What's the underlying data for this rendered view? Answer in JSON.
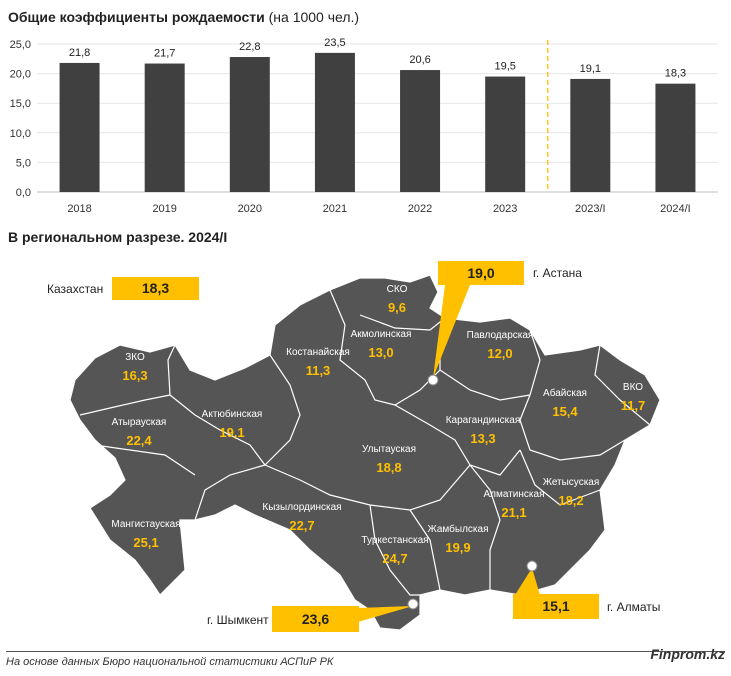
{
  "header": {
    "title_bold": "Общие коэффициенты рождаемости",
    "title_rest": " (на 1000 чел.)"
  },
  "chart_data": {
    "type": "bar",
    "categories": [
      "2018",
      "2019",
      "2020",
      "2021",
      "2022",
      "2023",
      "2023/I",
      "2024/I"
    ],
    "values": [
      21.8,
      21.7,
      22.8,
      23.5,
      20.6,
      19.5,
      19.1,
      18.3
    ],
    "value_labels": [
      "21,8",
      "21,7",
      "22,8",
      "23,5",
      "20,6",
      "19,5",
      "19,1",
      "18,3"
    ],
    "y_ticks": [
      "0,0",
      "5,0",
      "10,0",
      "15,0",
      "20,0",
      "25,0"
    ],
    "ylim": [
      0,
      25
    ],
    "grid": true,
    "separator_after_category": "2023",
    "bar_color": "#404040",
    "separator_color": "#ffc000"
  },
  "map_section": {
    "title": "В региональном разрезе. 2024/I",
    "map_color": "#555555",
    "value_color": "#ffc000",
    "regions": [
      {
        "id": "sko",
        "name": "СКО",
        "value": "9,6"
      },
      {
        "id": "pavlodar",
        "name": "Павлодарская",
        "value": "12,0"
      },
      {
        "id": "kostanay",
        "name": "Костанайская",
        "value": "11,3"
      },
      {
        "id": "akmola",
        "name": "Акмолинская",
        "value": "13,0"
      },
      {
        "id": "zko",
        "name": "ЗКО",
        "value": "16,3"
      },
      {
        "id": "abay",
        "name": "Абайская",
        "value": "15,4"
      },
      {
        "id": "vko",
        "name": "ВКО",
        "value": "11,7"
      },
      {
        "id": "atyrau",
        "name": "Атырауская",
        "value": "22,4"
      },
      {
        "id": "aktobe",
        "name": "Актюбинская",
        "value": "19,1"
      },
      {
        "id": "karaganda",
        "name": "Карагандинская",
        "value": "13,3"
      },
      {
        "id": "ulytau",
        "name": "Улытауская",
        "value": "18,8"
      },
      {
        "id": "zhetysu",
        "name": "Жетысуская",
        "value": "18,2"
      },
      {
        "id": "almaty-region",
        "name": "Алматинская",
        "value": "21,1"
      },
      {
        "id": "mangystau",
        "name": "Мангистауская",
        "value": "25,1"
      },
      {
        "id": "kyzylorda",
        "name": "Кызылординская",
        "value": "22,7"
      },
      {
        "id": "zhambyl",
        "name": "Жамбылская",
        "value": "19,9"
      },
      {
        "id": "turkestan",
        "name": "Туркестанская",
        "value": "24,7"
      }
    ],
    "callouts": {
      "kazakhstan": {
        "label": "Казахстан",
        "value": "18,3"
      },
      "astana": {
        "label": "г. Астана",
        "value": "19,0"
      },
      "almaty": {
        "label": "г. Алматы",
        "value": "15,1"
      },
      "shymkent": {
        "label": "г. Шымкент",
        "value": "23,6"
      }
    }
  },
  "footer": {
    "source": "На основе данных Бюро национальной статистики АСПиР РК",
    "brand": "Finprom.kz"
  }
}
